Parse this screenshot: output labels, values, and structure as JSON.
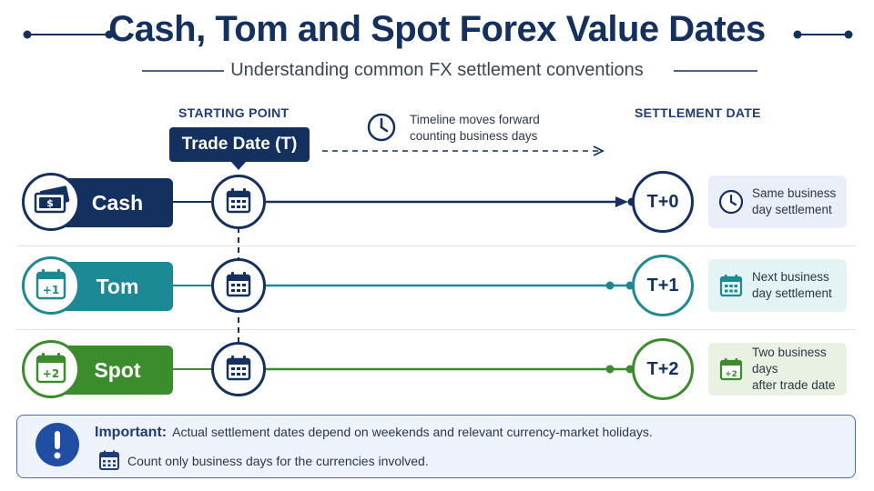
{
  "header": {
    "title": "Cash, Tom and Spot Forex Value Dates",
    "subtitle": "Understanding common FX settlement conventions"
  },
  "labels": {
    "starting_point": "STARTING POINT",
    "trade_date": "Trade Date (T)",
    "settlement_date": "SETTLEMENT DATE",
    "timeline_note_1": "Timeline moves forward",
    "timeline_note_2": "counting business days"
  },
  "rows": [
    {
      "name": "Cash",
      "icon": "banknotes-icon",
      "badge": "",
      "settlement": "T+0",
      "desc_1": "Same business",
      "desc_2": "day settlement",
      "desc_icon": "clock-icon",
      "color": "#14305f",
      "card_bg": "#e9eef8"
    },
    {
      "name": "Tom",
      "icon": "calendar-plus1-icon",
      "badge": "+1",
      "settlement": "T+1",
      "desc_1": "Next business",
      "desc_2": "day settlement",
      "desc_icon": "calendar-icon",
      "color": "#1b8a94",
      "card_bg": "#e4f3f3"
    },
    {
      "name": "Spot",
      "icon": "calendar-plus2-icon",
      "badge": "+2",
      "settlement": "T+2",
      "desc_1": "Two business days",
      "desc_2": "after trade date",
      "desc_icon": "calendar-plus2-icon",
      "color": "#3b8c2a",
      "card_bg": "#e9f2e2"
    }
  ],
  "note": {
    "heading": "Important:",
    "line_1": "Actual settlement dates depend on weekends and relevant currency-market holidays.",
    "line_2": "Count only business days for the currencies involved."
  },
  "colors": {
    "navy": "#14305f",
    "teal": "#1b8a94",
    "green": "#3b8c2a",
    "alert_blue": "#1f4ea3"
  }
}
